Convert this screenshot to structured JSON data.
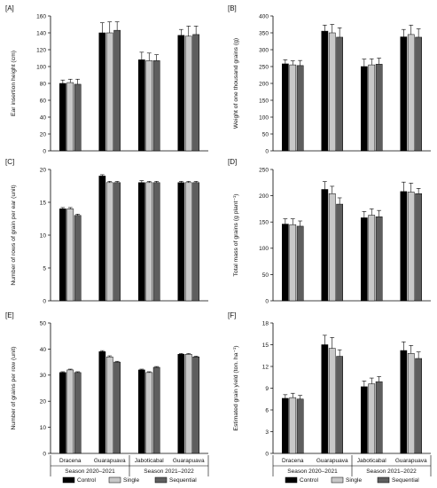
{
  "colors": {
    "Control": "#000000",
    "Single": "#c8c8c8",
    "Sequential": "#5e5e5e"
  },
  "legend": [
    "Control",
    "Single",
    "Sequential"
  ],
  "groups": [
    "Dracena",
    "Guarapuava",
    "Jaboticabal",
    "Guarapuava"
  ],
  "seasons": [
    "Season 2020–2021",
    "Season 2021–2022"
  ],
  "chart_data": [
    {
      "type": "bar",
      "panel": "[A]",
      "ylabel": "Ear insertion height (cm)",
      "ylim": [
        0,
        160
      ],
      "yticks": [
        "0",
        "20",
        "40",
        "60",
        "80",
        "100",
        "120",
        "140",
        "160"
      ],
      "categories": [
        "Dracena",
        "Guarapuava",
        "Jaboticabal",
        "Guarapuava"
      ],
      "series": [
        {
          "name": "Control",
          "values": [
            80,
            140,
            108,
            137
          ],
          "errors": [
            4,
            12,
            9,
            7
          ]
        },
        {
          "name": "Single",
          "values": [
            81,
            140,
            107,
            136
          ],
          "errors": [
            4,
            13,
            9,
            12
          ]
        },
        {
          "name": "Sequential",
          "values": [
            79,
            143,
            107,
            138
          ],
          "errors": [
            6,
            10,
            7,
            10
          ]
        }
      ]
    },
    {
      "type": "bar",
      "panel": "[B]",
      "ylabel": "Weight of one thousand grains (g)",
      "ylim": [
        0,
        400
      ],
      "yticks": [
        "0",
        "50",
        "100",
        "150",
        "200",
        "250",
        "300",
        "350",
        "400"
      ],
      "categories": [
        "Dracena",
        "Guarapuava",
        "Jaboticabal",
        "Guarapuava"
      ],
      "series": [
        {
          "name": "Control",
          "values": [
            258,
            355,
            250,
            338
          ],
          "errors": [
            12,
            18,
            22,
            22
          ]
        },
        {
          "name": "Single",
          "values": [
            255,
            350,
            255,
            345
          ],
          "errors": [
            12,
            25,
            18,
            28
          ]
        },
        {
          "name": "Sequential",
          "values": [
            253,
            337,
            257,
            337
          ],
          "errors": [
            15,
            28,
            18,
            25
          ]
        }
      ]
    },
    {
      "type": "bar",
      "panel": "[C]",
      "ylabel": "Number of rows of grain per ear (unit)",
      "ylim": [
        0,
        20
      ],
      "yticks": [
        "0",
        "5",
        "10",
        "15",
        "20"
      ],
      "categories": [
        "Dracena",
        "Guarapuava",
        "Jaboticabal",
        "Guarapuava"
      ],
      "series": [
        {
          "name": "Control",
          "values": [
            14,
            19,
            18,
            18
          ],
          "errors": [
            0.2,
            0.2,
            0.3,
            0.2
          ]
        },
        {
          "name": "Single",
          "values": [
            14,
            18,
            18,
            18
          ],
          "errors": [
            0.2,
            0.2,
            0.2,
            0.2
          ]
        },
        {
          "name": "Sequential",
          "values": [
            13,
            18,
            18,
            18
          ],
          "errors": [
            0.2,
            0.2,
            0.2,
            0.2
          ]
        }
      ]
    },
    {
      "type": "bar",
      "panel": "[D]",
      "ylabel": "Total mass of grains (g plant⁻¹)",
      "ylim": [
        0,
        250
      ],
      "yticks": [
        "0",
        "50",
        "100",
        "150",
        "200",
        "250"
      ],
      "categories": [
        "Dracena",
        "Guarapuava",
        "Jaboticabal",
        "Guarapuava"
      ],
      "series": [
        {
          "name": "Control",
          "values": [
            146,
            212,
            158,
            208
          ],
          "errors": [
            10,
            15,
            12,
            18
          ]
        },
        {
          "name": "Single",
          "values": [
            145,
            204,
            163,
            207
          ],
          "errors": [
            11,
            14,
            12,
            17
          ]
        },
        {
          "name": "Sequential",
          "values": [
            142,
            184,
            160,
            204
          ],
          "errors": [
            10,
            12,
            12,
            10
          ]
        }
      ]
    },
    {
      "type": "bar",
      "panel": "[E]",
      "ylabel": "Number of grains per row (unit)",
      "ylim": [
        0,
        50
      ],
      "yticks": [
        "0",
        "10",
        "20",
        "30",
        "40",
        "50"
      ],
      "categories": [
        "Dracena",
        "Guarapuava",
        "Jaboticabal",
        "Guarapuava"
      ],
      "series": [
        {
          "name": "Control",
          "values": [
            31,
            39,
            32,
            38
          ],
          "errors": [
            0.3,
            0.4,
            0.3,
            0.3
          ]
        },
        {
          "name": "Single",
          "values": [
            32,
            37,
            31,
            38
          ],
          "errors": [
            0.3,
            0.4,
            0.3,
            0.3
          ]
        },
        {
          "name": "Sequential",
          "values": [
            31,
            35,
            33,
            37
          ],
          "errors": [
            0.3,
            0.3,
            0.3,
            0.3
          ]
        }
      ]
    },
    {
      "type": "bar",
      "panel": "[F]",
      "ylabel": "Estimated grain yield (ton. ha⁻¹)",
      "ylim": [
        0,
        18
      ],
      "yticks": [
        "0",
        "3",
        "6",
        "9",
        "12",
        "15",
        "18"
      ],
      "categories": [
        "Dracena",
        "Guarapuava",
        "Jaboticabal",
        "Guarapuava"
      ],
      "series": [
        {
          "name": "Control",
          "values": [
            7.6,
            15.0,
            9.2,
            14.2
          ],
          "errors": [
            0.5,
            1.3,
            0.8,
            1.2
          ]
        },
        {
          "name": "Single",
          "values": [
            7.7,
            14.5,
            9.6,
            13.8
          ],
          "errors": [
            0.6,
            1.5,
            0.8,
            1.1
          ]
        },
        {
          "name": "Sequential",
          "values": [
            7.5,
            13.4,
            9.9,
            13.1
          ],
          "errors": [
            0.5,
            0.9,
            0.7,
            0.9
          ]
        }
      ]
    }
  ]
}
